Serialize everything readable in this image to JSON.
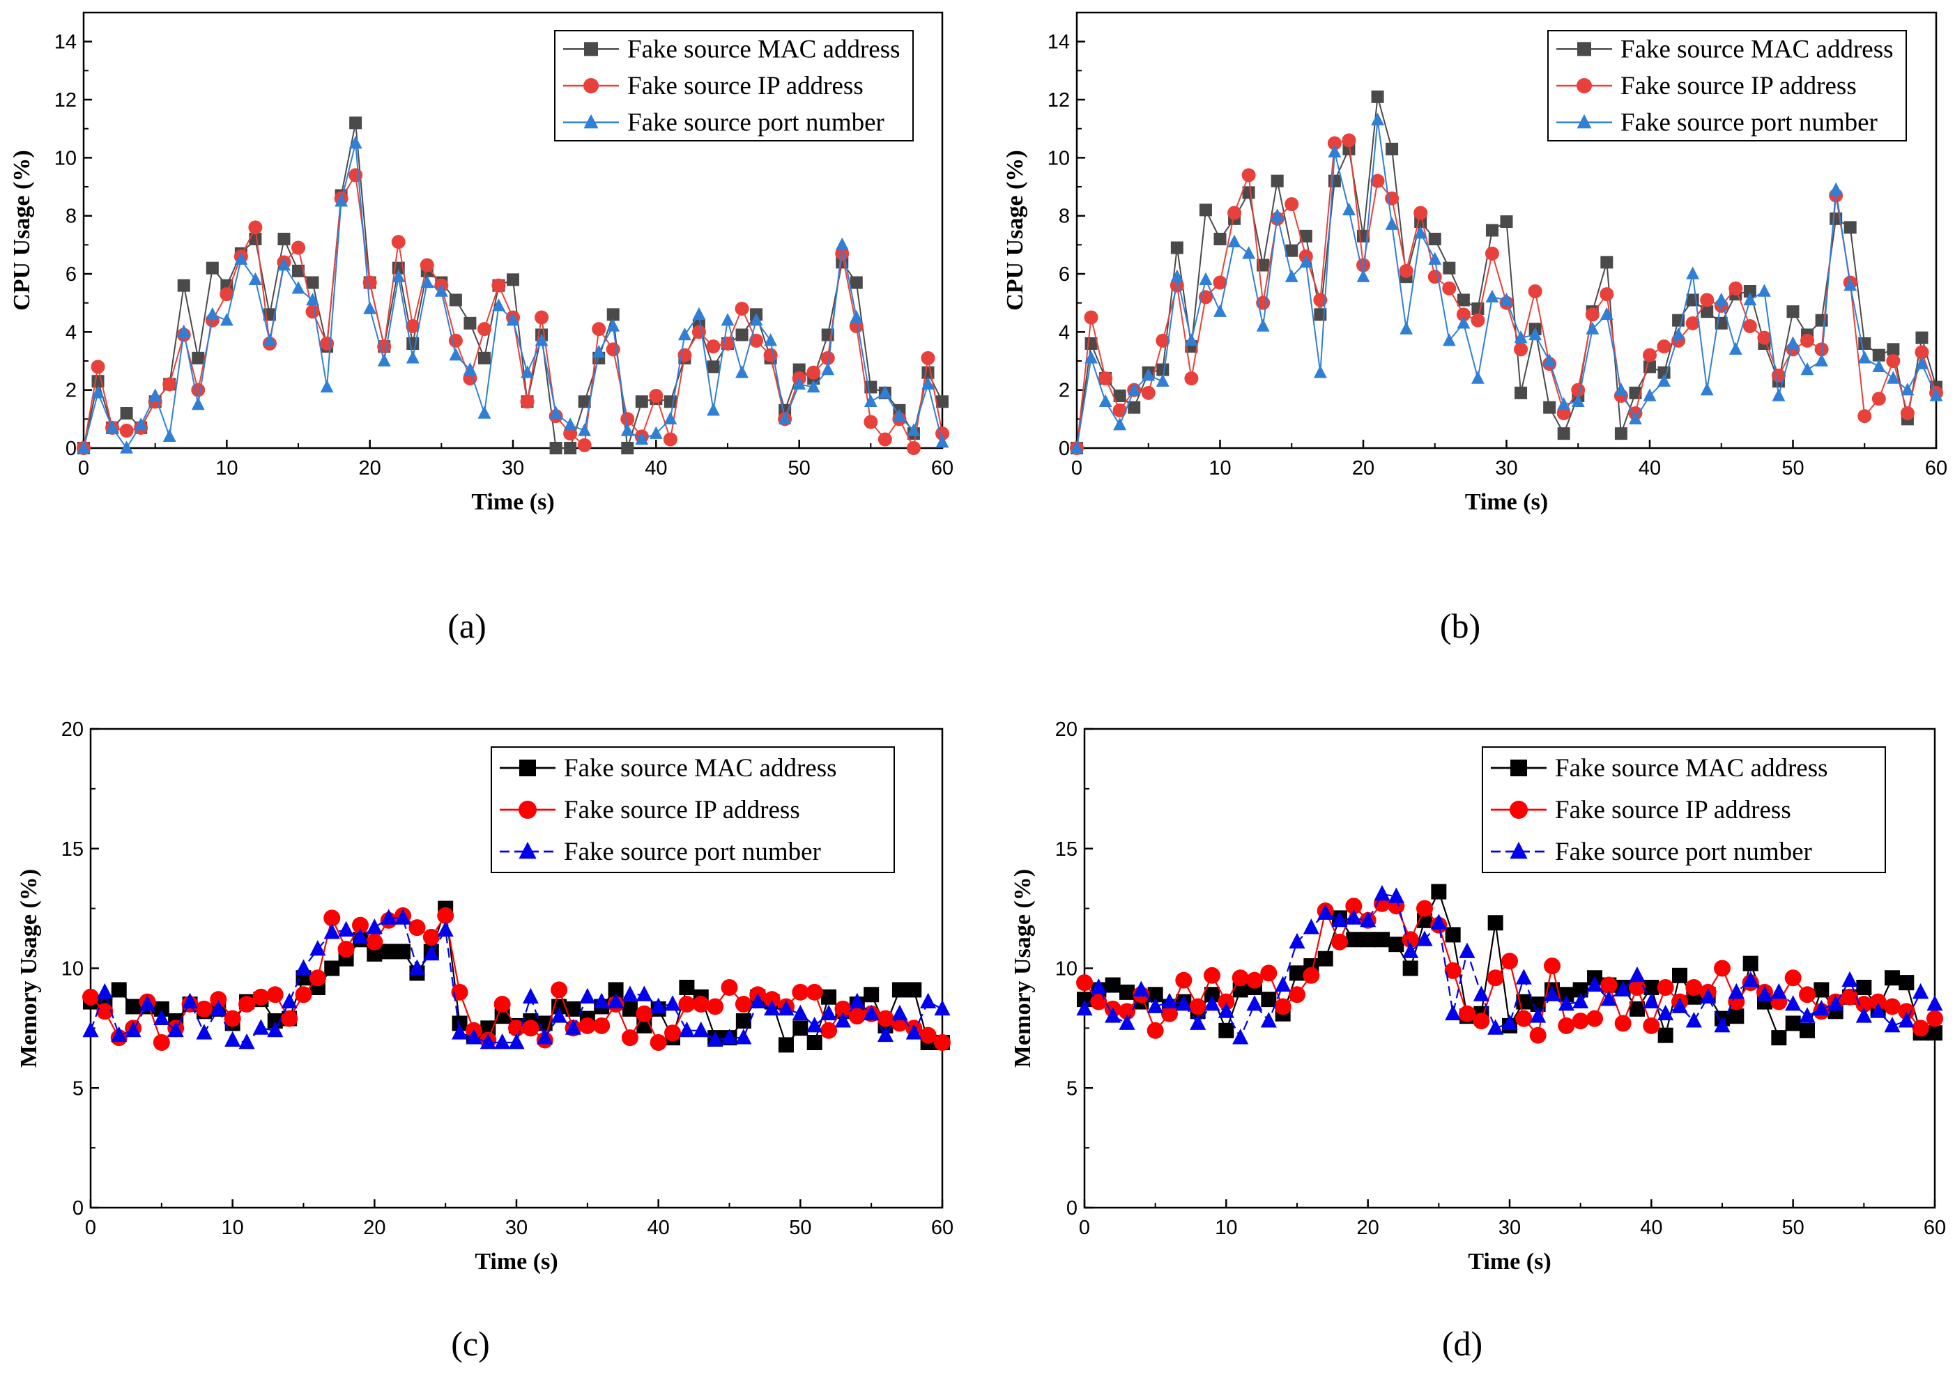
{
  "chart_data": [
    {
      "type": "line",
      "caption": "(a)",
      "title": "",
      "xlabel": "Time (s)",
      "ylabel": "CPU Usage (%)",
      "xlim": [
        0,
        60
      ],
      "ylim": [
        0,
        15
      ],
      "xticks": [
        0,
        10,
        20,
        30,
        40,
        50,
        60
      ],
      "yticks": [
        0,
        2,
        4,
        6,
        8,
        10,
        12,
        14
      ],
      "legend_position": "top-right",
      "series": [
        {
          "name": "Fake source MAC address",
          "color": "#4a4a4a",
          "marker": "square",
          "values": [
            0.0,
            2.3,
            0.7,
            1.2,
            0.7,
            1.6,
            2.2,
            5.6,
            3.1,
            6.2,
            5.6,
            6.7,
            7.2,
            4.6,
            7.2,
            6.1,
            5.7,
            3.5,
            8.7,
            11.2,
            5.7,
            3.5,
            6.2,
            3.6,
            6.1,
            5.7,
            5.1,
            4.3,
            3.1,
            5.6,
            5.8,
            1.6,
            3.9,
            0.0,
            0.0,
            1.6,
            3.1,
            4.6,
            0.0,
            1.6,
            1.7,
            1.6,
            3.1,
            4.2,
            2.8,
            3.6,
            3.9,
            4.6,
            3.1,
            1.3,
            2.7,
            2.4,
            3.9,
            6.4,
            5.7,
            2.1,
            1.9,
            1.3,
            0.5,
            2.6,
            1.6
          ]
        },
        {
          "name": "Fake source IP address",
          "color": "#e8403a",
          "marker": "circle",
          "values": [
            0.0,
            2.8,
            0.7,
            0.6,
            0.7,
            1.6,
            2.2,
            3.9,
            2.0,
            4.4,
            5.3,
            6.6,
            7.6,
            3.6,
            6.4,
            6.9,
            4.7,
            3.6,
            8.6,
            9.4,
            5.7,
            3.5,
            7.1,
            4.2,
            6.3,
            5.6,
            3.7,
            2.4,
            4.1,
            5.6,
            4.5,
            1.6,
            4.5,
            1.1,
            0.5,
            0.1,
            4.1,
            3.4,
            1.0,
            0.4,
            1.8,
            0.3,
            3.2,
            4.0,
            3.5,
            3.6,
            4.8,
            3.7,
            3.2,
            1.0,
            2.4,
            2.6,
            3.1,
            6.7,
            4.2,
            0.9,
            0.3,
            1.0,
            0.0,
            3.1,
            0.5
          ]
        },
        {
          "name": "Fake source port number",
          "color": "#2f7fd6",
          "marker": "triangle",
          "values": [
            0.0,
            1.9,
            0.7,
            0.0,
            0.8,
            1.8,
            0.4,
            4.0,
            1.5,
            4.6,
            4.4,
            6.5,
            5.8,
            3.7,
            6.3,
            5.5,
            5.1,
            2.1,
            8.5,
            10.5,
            4.8,
            3.0,
            5.9,
            3.1,
            5.7,
            5.4,
            3.2,
            2.7,
            1.2,
            4.9,
            4.4,
            2.6,
            3.7,
            1.2,
            0.8,
            0.6,
            3.3,
            4.2,
            0.6,
            0.3,
            0.5,
            1.0,
            3.9,
            4.6,
            1.3,
            4.4,
            2.6,
            4.4,
            3.7,
            1.0,
            2.2,
            2.1,
            2.7,
            7.0,
            4.5,
            1.6,
            1.9,
            1.1,
            0.6,
            2.2,
            0.2
          ]
        }
      ]
    },
    {
      "type": "line",
      "caption": "(b)",
      "title": "",
      "xlabel": "Time (s)",
      "ylabel": "CPU Usage (%)",
      "xlim": [
        0,
        60
      ],
      "ylim": [
        0,
        15
      ],
      "xticks": [
        0,
        10,
        20,
        30,
        40,
        50,
        60
      ],
      "yticks": [
        0,
        2,
        4,
        6,
        8,
        10,
        12,
        14
      ],
      "legend_position": "top-right",
      "series": [
        {
          "name": "Fake source MAC address",
          "color": "#4a4a4a",
          "marker": "square",
          "values": [
            0.0,
            3.6,
            2.4,
            1.8,
            1.4,
            2.6,
            2.7,
            6.9,
            3.5,
            8.2,
            7.2,
            7.9,
            8.8,
            6.3,
            9.2,
            6.8,
            7.3,
            4.6,
            9.2,
            10.3,
            7.3,
            12.1,
            10.3,
            5.9,
            7.8,
            7.2,
            6.2,
            5.1,
            4.8,
            7.5,
            7.8,
            1.9,
            4.1,
            1.4,
            0.5,
            1.8,
            4.7,
            6.4,
            0.5,
            1.9,
            2.8,
            2.6,
            4.4,
            5.1,
            4.7,
            4.3,
            5.3,
            5.4,
            3.6,
            2.3,
            4.7,
            3.9,
            4.4,
            7.9,
            7.6,
            3.6,
            3.2,
            3.4,
            1.0,
            3.8,
            2.1
          ]
        },
        {
          "name": "Fake source IP address",
          "color": "#e8403a",
          "marker": "circle",
          "values": [
            0.0,
            4.5,
            2.4,
            1.3,
            2.0,
            1.9,
            3.7,
            5.6,
            2.4,
            5.2,
            5.7,
            8.1,
            9.4,
            5.0,
            7.9,
            8.4,
            6.6,
            5.1,
            10.5,
            10.6,
            6.3,
            9.2,
            8.6,
            6.1,
            8.1,
            5.9,
            5.5,
            4.6,
            4.4,
            6.7,
            5.0,
            3.4,
            5.4,
            2.9,
            1.2,
            2.0,
            4.6,
            5.3,
            1.8,
            1.2,
            3.2,
            3.5,
            3.7,
            4.3,
            5.1,
            4.9,
            5.5,
            4.2,
            3.8,
            2.5,
            3.4,
            3.7,
            3.4,
            8.7,
            5.7,
            1.1,
            1.7,
            3.0,
            1.2,
            3.3,
            1.9
          ]
        },
        {
          "name": "Fake source port number",
          "color": "#2f7fd6",
          "marker": "triangle",
          "values": [
            0.0,
            3.1,
            1.6,
            0.8,
            2.0,
            2.5,
            2.3,
            5.9,
            3.7,
            5.8,
            4.7,
            7.1,
            6.7,
            4.2,
            8.0,
            5.9,
            6.4,
            2.6,
            10.2,
            8.2,
            5.9,
            11.3,
            7.7,
            4.1,
            7.4,
            6.5,
            3.7,
            4.3,
            2.4,
            5.2,
            5.1,
            3.8,
            3.9,
            3.0,
            1.5,
            1.6,
            4.1,
            4.6,
            2.0,
            1.0,
            1.8,
            2.3,
            3.9,
            6.0,
            2.0,
            5.1,
            3.4,
            5.1,
            5.4,
            1.8,
            3.6,
            2.7,
            3.0,
            8.9,
            5.6,
            3.1,
            2.8,
            2.4,
            2.0,
            2.9,
            1.8
          ]
        }
      ]
    },
    {
      "type": "line",
      "caption": "(c)",
      "title": "",
      "xlabel": "Time (s)",
      "ylabel": "Memory Usage (%)",
      "xlim": [
        0,
        60
      ],
      "ylim": [
        0,
        20
      ],
      "xticks": [
        0,
        10,
        20,
        30,
        40,
        50,
        60
      ],
      "yticks": [
        0,
        5,
        10,
        15,
        20
      ],
      "legend_position": "top-right",
      "series": [
        {
          "name": "Fake source MAC address",
          "color": "#000000",
          "marker": "square",
          "values": [
            8.6,
            8.5,
            9.1,
            8.4,
            8.4,
            8.3,
            7.8,
            8.5,
            8.2,
            8.3,
            7.7,
            8.6,
            8.7,
            7.8,
            7.9,
            9.6,
            9.2,
            10.0,
            10.4,
            11.2,
            10.6,
            10.7,
            10.7,
            9.8,
            10.7,
            12.5,
            7.7,
            7.2,
            7.5,
            8.0,
            7.6,
            7.8,
            7.7,
            8.4,
            8.3,
            7.9,
            8.4,
            9.1,
            8.3,
            7.6,
            8.3,
            7.1,
            9.2,
            8.8,
            7.1,
            7.1,
            7.8,
            8.8,
            8.6,
            6.8,
            7.5,
            6.9,
            8.8,
            8.2,
            8.5,
            8.9,
            7.6,
            9.1,
            9.1,
            6.9,
            6.9
          ]
        },
        {
          "name": "Fake source IP address",
          "color": "#ff0000",
          "marker": "circle",
          "values": [
            8.8,
            8.2,
            7.1,
            7.5,
            8.6,
            6.9,
            7.5,
            8.5,
            8.3,
            8.7,
            7.9,
            8.5,
            8.8,
            8.9,
            7.9,
            8.9,
            9.6,
            12.1,
            10.8,
            11.8,
            11.1,
            12.0,
            12.2,
            11.7,
            11.3,
            12.2,
            9.0,
            7.4,
            7.0,
            8.5,
            7.5,
            7.5,
            7.0,
            9.1,
            7.5,
            7.6,
            7.6,
            8.5,
            7.1,
            8.1,
            6.9,
            7.3,
            8.5,
            8.5,
            8.4,
            9.2,
            8.5,
            8.9,
            8.7,
            8.4,
            9.0,
            9.0,
            7.4,
            8.3,
            8.0,
            8.1,
            7.9,
            7.7,
            7.5,
            7.2,
            6.9
          ]
        },
        {
          "name": "Fake source port number",
          "color": "#0000ee",
          "marker": "triangle",
          "values": [
            7.4,
            9.0,
            7.2,
            7.4,
            8.5,
            7.9,
            7.4,
            8.6,
            7.3,
            8.3,
            7.0,
            6.9,
            7.5,
            7.4,
            8.6,
            10.0,
            10.8,
            11.5,
            11.6,
            11.3,
            11.7,
            12.1,
            12.1,
            10.0,
            10.6,
            11.6,
            7.3,
            7.1,
            6.9,
            6.9,
            6.9,
            8.8,
            7.1,
            8.0,
            7.5,
            8.8,
            8.6,
            8.6,
            8.9,
            8.9,
            8.4,
            8.5,
            7.4,
            7.4,
            7.0,
            7.1,
            7.1,
            8.6,
            8.3,
            8.3,
            8.1,
            7.6,
            8.1,
            7.8,
            8.6,
            8.1,
            7.2,
            8.1,
            7.3,
            8.6,
            8.3
          ]
        }
      ]
    },
    {
      "type": "line",
      "caption": "(d)",
      "title": "",
      "xlabel": "Time (s)",
      "ylabel": "Memory Usage (%)",
      "xlim": [
        0,
        60
      ],
      "ylim": [
        0,
        20
      ],
      "xticks": [
        0,
        10,
        20,
        30,
        40,
        50,
        60
      ],
      "yticks": [
        0,
        5,
        10,
        15,
        20
      ],
      "legend_position": "top-right",
      "series": [
        {
          "name": "Fake source MAC address",
          "color": "#000000",
          "marker": "square",
          "values": [
            8.7,
            9.1,
            9.3,
            9.0,
            8.6,
            8.9,
            8.4,
            8.6,
            8.2,
            8.9,
            7.4,
            9.1,
            9.2,
            8.7,
            8.1,
            9.8,
            10.1,
            10.4,
            12.1,
            11.2,
            11.2,
            11.2,
            11.0,
            10.0,
            12.0,
            13.2,
            11.4,
            8.0,
            8.1,
            11.9,
            7.6,
            8.6,
            8.5,
            9.1,
            8.9,
            9.1,
            9.6,
            9.3,
            9.2,
            8.3,
            9.2,
            7.2,
            9.7,
            8.8,
            8.9,
            7.9,
            8.0,
            10.2,
            8.6,
            7.1,
            7.7,
            7.4,
            9.1,
            8.2,
            8.8,
            9.2,
            8.3,
            9.6,
            9.4,
            7.3,
            7.3
          ]
        },
        {
          "name": "Fake source IP address",
          "color": "#ff0000",
          "marker": "circle",
          "values": [
            9.4,
            8.6,
            8.3,
            8.2,
            8.9,
            7.4,
            8.1,
            9.5,
            8.4,
            9.7,
            8.6,
            9.6,
            9.5,
            9.8,
            8.4,
            8.9,
            9.7,
            12.4,
            11.1,
            12.6,
            12.0,
            12.7,
            12.6,
            11.2,
            12.5,
            11.8,
            9.9,
            8.1,
            7.8,
            9.6,
            10.3,
            7.9,
            7.2,
            10.1,
            7.6,
            7.8,
            7.9,
            9.3,
            7.7,
            9.2,
            7.6,
            9.2,
            8.6,
            9.2,
            9.0,
            10.0,
            8.6,
            9.4,
            9.0,
            8.6,
            9.6,
            8.9,
            8.2,
            8.6,
            8.8,
            8.5,
            8.6,
            8.4,
            8.2,
            7.5,
            7.9
          ]
        },
        {
          "name": "Fake source port number",
          "color": "#0000ee",
          "marker": "triangle",
          "values": [
            8.3,
            9.2,
            8.0,
            7.7,
            9.1,
            8.4,
            8.6,
            8.5,
            7.7,
            8.5,
            8.2,
            7.1,
            8.5,
            7.8,
            9.3,
            11.1,
            11.7,
            12.3,
            12.0,
            12.1,
            12.0,
            13.1,
            13.0,
            10.7,
            11.2,
            11.9,
            8.1,
            10.7,
            8.9,
            7.5,
            7.7,
            9.6,
            8.0,
            8.9,
            8.5,
            8.6,
            9.3,
            8.7,
            9.1,
            9.7,
            8.6,
            8.1,
            8.4,
            7.8,
            8.8,
            7.6,
            9.0,
            9.5,
            8.9,
            9.0,
            8.5,
            8.0,
            8.3,
            8.5,
            9.5,
            8.0,
            8.2,
            7.6,
            7.8,
            9.0,
            8.5
          ]
        }
      ]
    }
  ]
}
